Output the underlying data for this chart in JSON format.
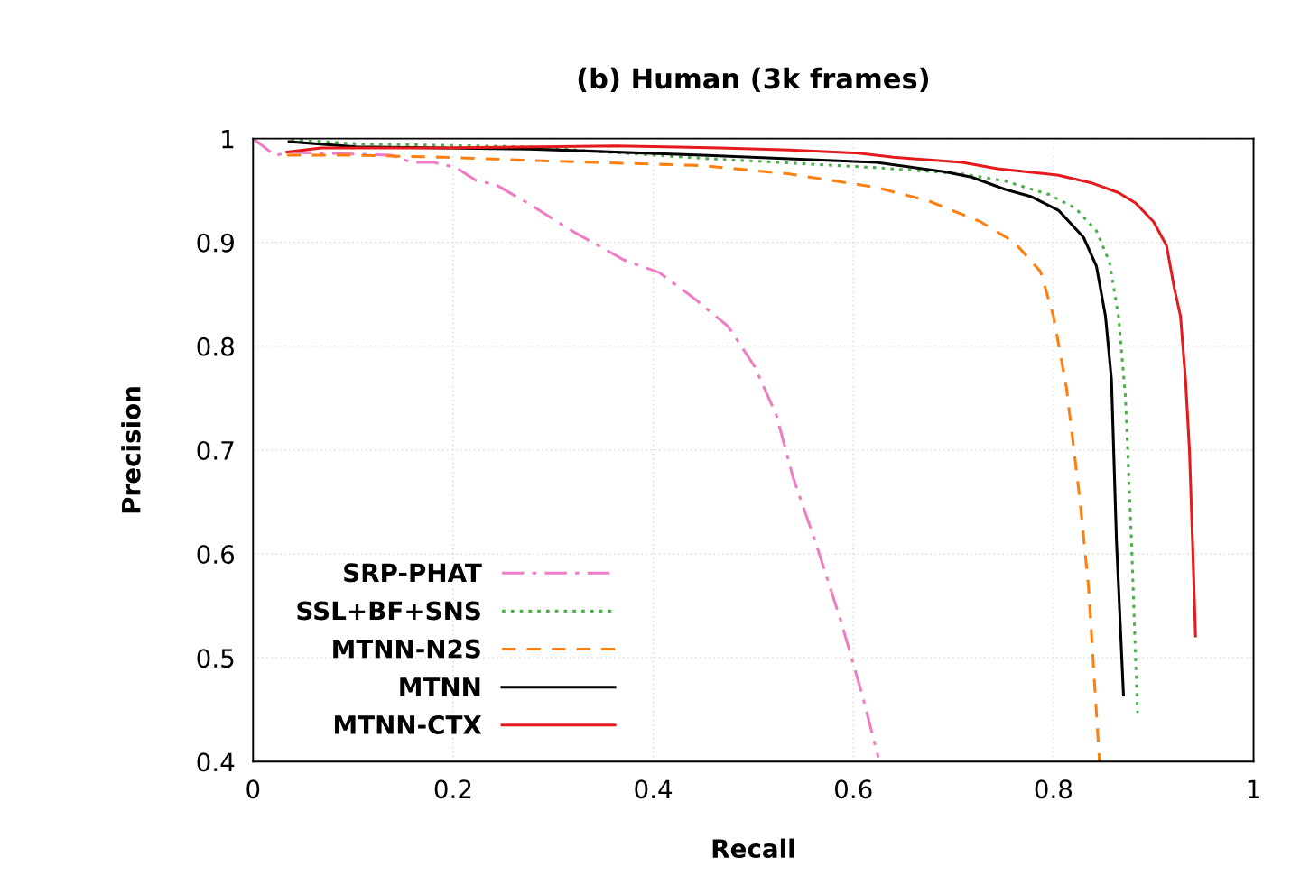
{
  "chart_data": {
    "type": "line",
    "title": "(b) Human (3k frames)",
    "xlabel": "Recall",
    "ylabel": "Precision",
    "xlim": [
      0,
      1
    ],
    "ylim": [
      0.4,
      1
    ],
    "xticks": [
      0,
      0.2,
      0.4,
      0.6,
      0.8,
      1
    ],
    "yticks": [
      0.4,
      0.5,
      0.6,
      0.7,
      0.8,
      0.9,
      1
    ],
    "grid": true,
    "legend": "bottom left",
    "marker": "none",
    "series": [
      {
        "name": "SRP-PHAT",
        "color": "#f07cc4",
        "line_style": "dashdot",
        "x": [
          0,
          0.0225,
          0.034,
          0.138,
          0.159,
          0.181,
          0.203,
          0.224,
          0.242,
          0.276,
          0.319,
          0.371,
          0.406,
          0.441,
          0.475,
          0.501,
          0.523,
          0.54,
          0.562,
          0.588,
          0.609,
          0.625
        ],
        "values": [
          1.0,
          0.9835,
          0.987,
          0.984,
          0.977,
          0.977,
          0.972,
          0.959,
          0.956,
          0.937,
          0.911,
          0.883,
          0.871,
          0.846,
          0.819,
          0.781,
          0.734,
          0.673,
          0.612,
          0.534,
          0.464,
          0.404
        ]
      },
      {
        "name": "SSL+BF+SNS",
        "color": "#4daf4a",
        "line_style": "dotted",
        "x": [
          0.038,
          0.103,
          0.276,
          0.449,
          0.623,
          0.709,
          0.752,
          0.796,
          0.822,
          0.843,
          0.856,
          0.865,
          0.872,
          0.878,
          0.884
        ],
        "values": [
          0.999,
          0.995,
          0.992,
          0.981,
          0.972,
          0.966,
          0.959,
          0.946,
          0.933,
          0.911,
          0.881,
          0.829,
          0.751,
          0.612,
          0.447
        ]
      },
      {
        "name": "MTNN-N2S",
        "color": "#ff7f0e",
        "line_style": "dashed",
        "x": [
          0.034,
          0.103,
          0.19,
          0.276,
          0.449,
          0.536,
          0.623,
          0.675,
          0.727,
          0.761,
          0.787,
          0.8,
          0.813,
          0.826,
          0.835,
          0.846
        ],
        "values": [
          0.984,
          0.984,
          0.982,
          0.979,
          0.974,
          0.966,
          0.953,
          0.94,
          0.92,
          0.9,
          0.872,
          0.829,
          0.76,
          0.656,
          0.569,
          0.4
        ]
      },
      {
        "name": "MTNN",
        "color": "#000000",
        "line_style": "solid",
        "x": [
          0.036,
          0.103,
          0.276,
          0.449,
          0.623,
          0.692,
          0.718,
          0.752,
          0.778,
          0.805,
          0.83,
          0.843,
          0.852,
          0.858,
          0.863,
          0.87
        ],
        "values": [
          0.997,
          0.992,
          0.99,
          0.984,
          0.977,
          0.968,
          0.963,
          0.951,
          0.944,
          0.931,
          0.905,
          0.877,
          0.829,
          0.768,
          0.612,
          0.464
        ]
      },
      {
        "name": "MTNN-CTX",
        "color": "#e41a1c",
        "line_style": "solid",
        "x": [
          0.034,
          0.068,
          0.19,
          0.363,
          0.467,
          0.536,
          0.605,
          0.64,
          0.709,
          0.744,
          0.804,
          0.839,
          0.865,
          0.882,
          0.9,
          0.913,
          0.921,
          0.927,
          0.932,
          0.936,
          0.939,
          0.942
        ],
        "values": [
          0.987,
          0.991,
          0.991,
          0.993,
          0.991,
          0.989,
          0.986,
          0.982,
          0.977,
          0.971,
          0.965,
          0.957,
          0.948,
          0.938,
          0.92,
          0.897,
          0.855,
          0.829,
          0.768,
          0.699,
          0.612,
          0.521
        ]
      }
    ]
  }
}
